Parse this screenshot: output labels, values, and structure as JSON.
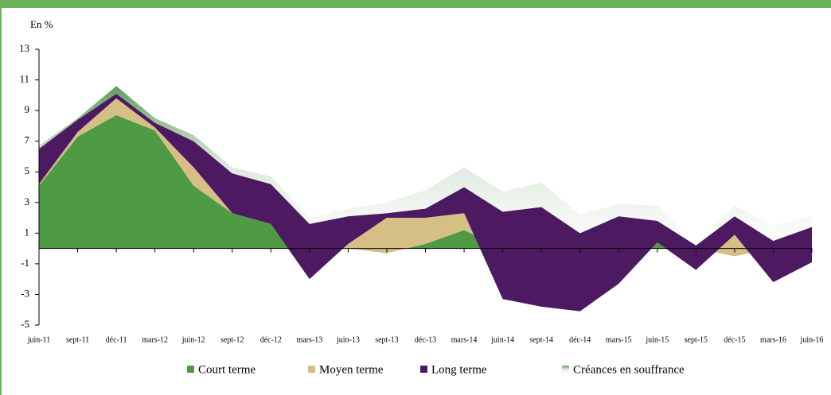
{
  "chart_data": {
    "type": "stacked_area",
    "y_label": "En %",
    "categories": [
      "juin-11",
      "sept-11",
      "déc-11",
      "mars-12",
      "juin-12",
      "sept-12",
      "déc-12",
      "mars-13",
      "juin-13",
      "sept-13",
      "déc-13",
      "mars-14",
      "juin-14",
      "sept-14",
      "déc-14",
      "mars-15",
      "juin-15",
      "sept-15",
      "déc-15",
      "mars-16",
      "juin-16"
    ],
    "series": [
      {
        "name": "Court terme",
        "color": "#4e9a45",
        "values": [
          4.1,
          7.3,
          8.7,
          7.7,
          4.1,
          2.3,
          1.6,
          0,
          0,
          -0.3,
          0.3,
          1.2,
          0,
          0,
          0,
          0,
          0.4,
          0,
          -0.5,
          0,
          0
        ]
      },
      {
        "name": "Moyen terme",
        "color": "#d6bf85",
        "values": [
          0.1,
          0.3,
          1.1,
          0.2,
          1.2,
          0,
          0,
          -2.0,
          0.3,
          2.3,
          1.7,
          1.1,
          -3.3,
          -3.8,
          -4.1,
          -2.3,
          0,
          -1.4,
          1.4,
          -2.2,
          -0.9
        ]
      },
      {
        "name": "Long terme",
        "color": "#4d1a62",
        "values": [
          2.3,
          0.8,
          0.3,
          0.3,
          1.7,
          2.6,
          2.6,
          3.6,
          1.8,
          0.3,
          0.6,
          1.7,
          5.7,
          6.5,
          5.1,
          4.4,
          1.4,
          1.6,
          1.2,
          2.7,
          2.3
        ]
      },
      {
        "name": "Créances en souffrance",
        "color": "#5f9f5f",
        "values": [
          0.2,
          0.1,
          0.5,
          0.3,
          0.4,
          0.4,
          0.5,
          0.4,
          0.5,
          0.7,
          1.2,
          1.3,
          1.3,
          1.6,
          1.2,
          0.8,
          1.0,
          0.1,
          0.7,
          1.0,
          0.7
        ]
      }
    ],
    "ylim": [
      -5,
      13
    ],
    "yticks": [
      -5,
      -3,
      -1,
      1,
      3,
      5,
      7,
      9,
      11,
      13
    ]
  }
}
